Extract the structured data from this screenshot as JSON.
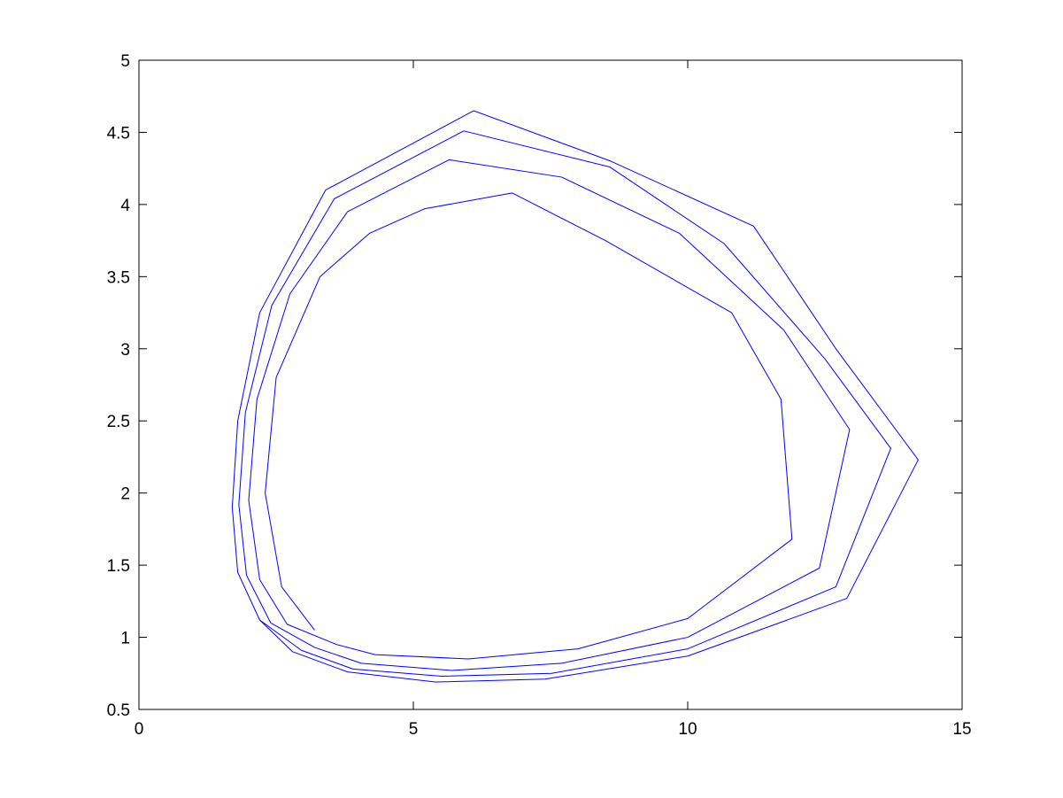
{
  "chart_data": {
    "type": "line",
    "color": "#0000ff",
    "xlim": [
      0,
      15
    ],
    "xticks": [
      0,
      5,
      10,
      15
    ],
    "ylim": [
      0.5,
      5
    ],
    "yticks": [
      0.5,
      1,
      1.5,
      2,
      2.5,
      3,
      3.5,
      4,
      4.5,
      5
    ],
    "grid": false,
    "x": [
      3.2,
      2.6,
      2.3,
      2.5,
      3.3,
      4.2,
      5.2,
      6.8,
      8.5,
      10.8,
      11.7,
      11.9,
      10,
      8,
      6,
      4.3,
      3.6,
      2.7,
      2.2,
      2.0,
      2.15,
      2.75,
      3.8,
      5.65,
      7.7,
      9.85,
      11.75,
      12.95,
      12.4,
      10,
      7.7,
      5.7,
      4.05,
      3.2,
      2.4,
      1.96,
      1.82,
      1.94,
      2.42,
      3.56,
      5.92,
      8.58,
      10.66,
      12.5,
      13.7,
      12.7,
      10,
      7.52,
      5.52,
      3.9,
      2.96,
      2.2,
      1.8,
      1.7,
      1.8,
      2.2,
      3.4,
      6.1,
      8.6,
      11.2,
      12.7,
      14.2,
      12.9,
      10,
      7.4,
      5.4,
      3.8,
      2.8,
      2.2
    ],
    "y": [
      1.05,
      1.35,
      2.0,
      2.8,
      3.5,
      3.8,
      3.97,
      4.08,
      3.75,
      3.25,
      2.65,
      1.68,
      1.13,
      0.92,
      0.85,
      0.88,
      0.95,
      1.09,
      1.4,
      1.95,
      2.65,
      3.38,
      3.95,
      4.31,
      4.19,
      3.8,
      3.13,
      2.44,
      1.48,
      1.0,
      0.82,
      0.77,
      0.82,
      0.93,
      1.1,
      1.43,
      1.92,
      2.56,
      3.3,
      4.04,
      4.51,
      4.26,
      3.73,
      2.93,
      2.31,
      1.35,
      0.92,
      0.75,
      0.73,
      0.78,
      0.91,
      1.12,
      1.45,
      1.9,
      2.5,
      3.25,
      4.1,
      4.65,
      4.3,
      3.85,
      3.0,
      2.23,
      1.27,
      0.87,
      0.71,
      0.69,
      0.76,
      0.9,
      1.12
    ]
  }
}
